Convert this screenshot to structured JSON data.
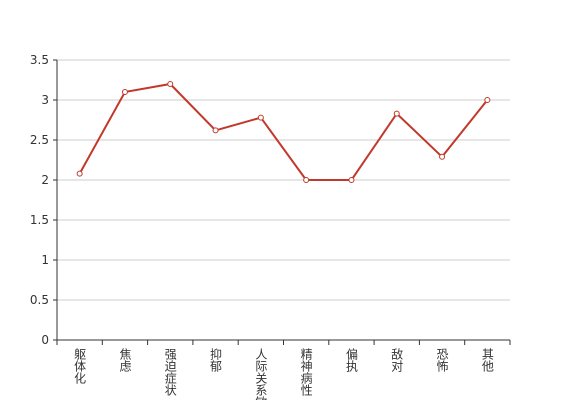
{
  "chart_data": {
    "type": "line",
    "categories": [
      "躯体化",
      "焦虑",
      "强迫症状",
      "抑郁",
      "人际关系敏感",
      "精神病性",
      "偏执",
      "敌对",
      "恐怖",
      "其他"
    ],
    "series": [
      {
        "color": "#c0392b",
        "values": [
          2.08,
          3.1,
          3.2,
          2.62,
          2.78,
          2.0,
          2.0,
          2.83,
          2.29,
          3.0
        ]
      }
    ],
    "ylim": [
      0,
      3.5
    ],
    "yticks": [
      0,
      0.5,
      1,
      1.5,
      2,
      2.5,
      3,
      3.5
    ],
    "grid": true
  }
}
